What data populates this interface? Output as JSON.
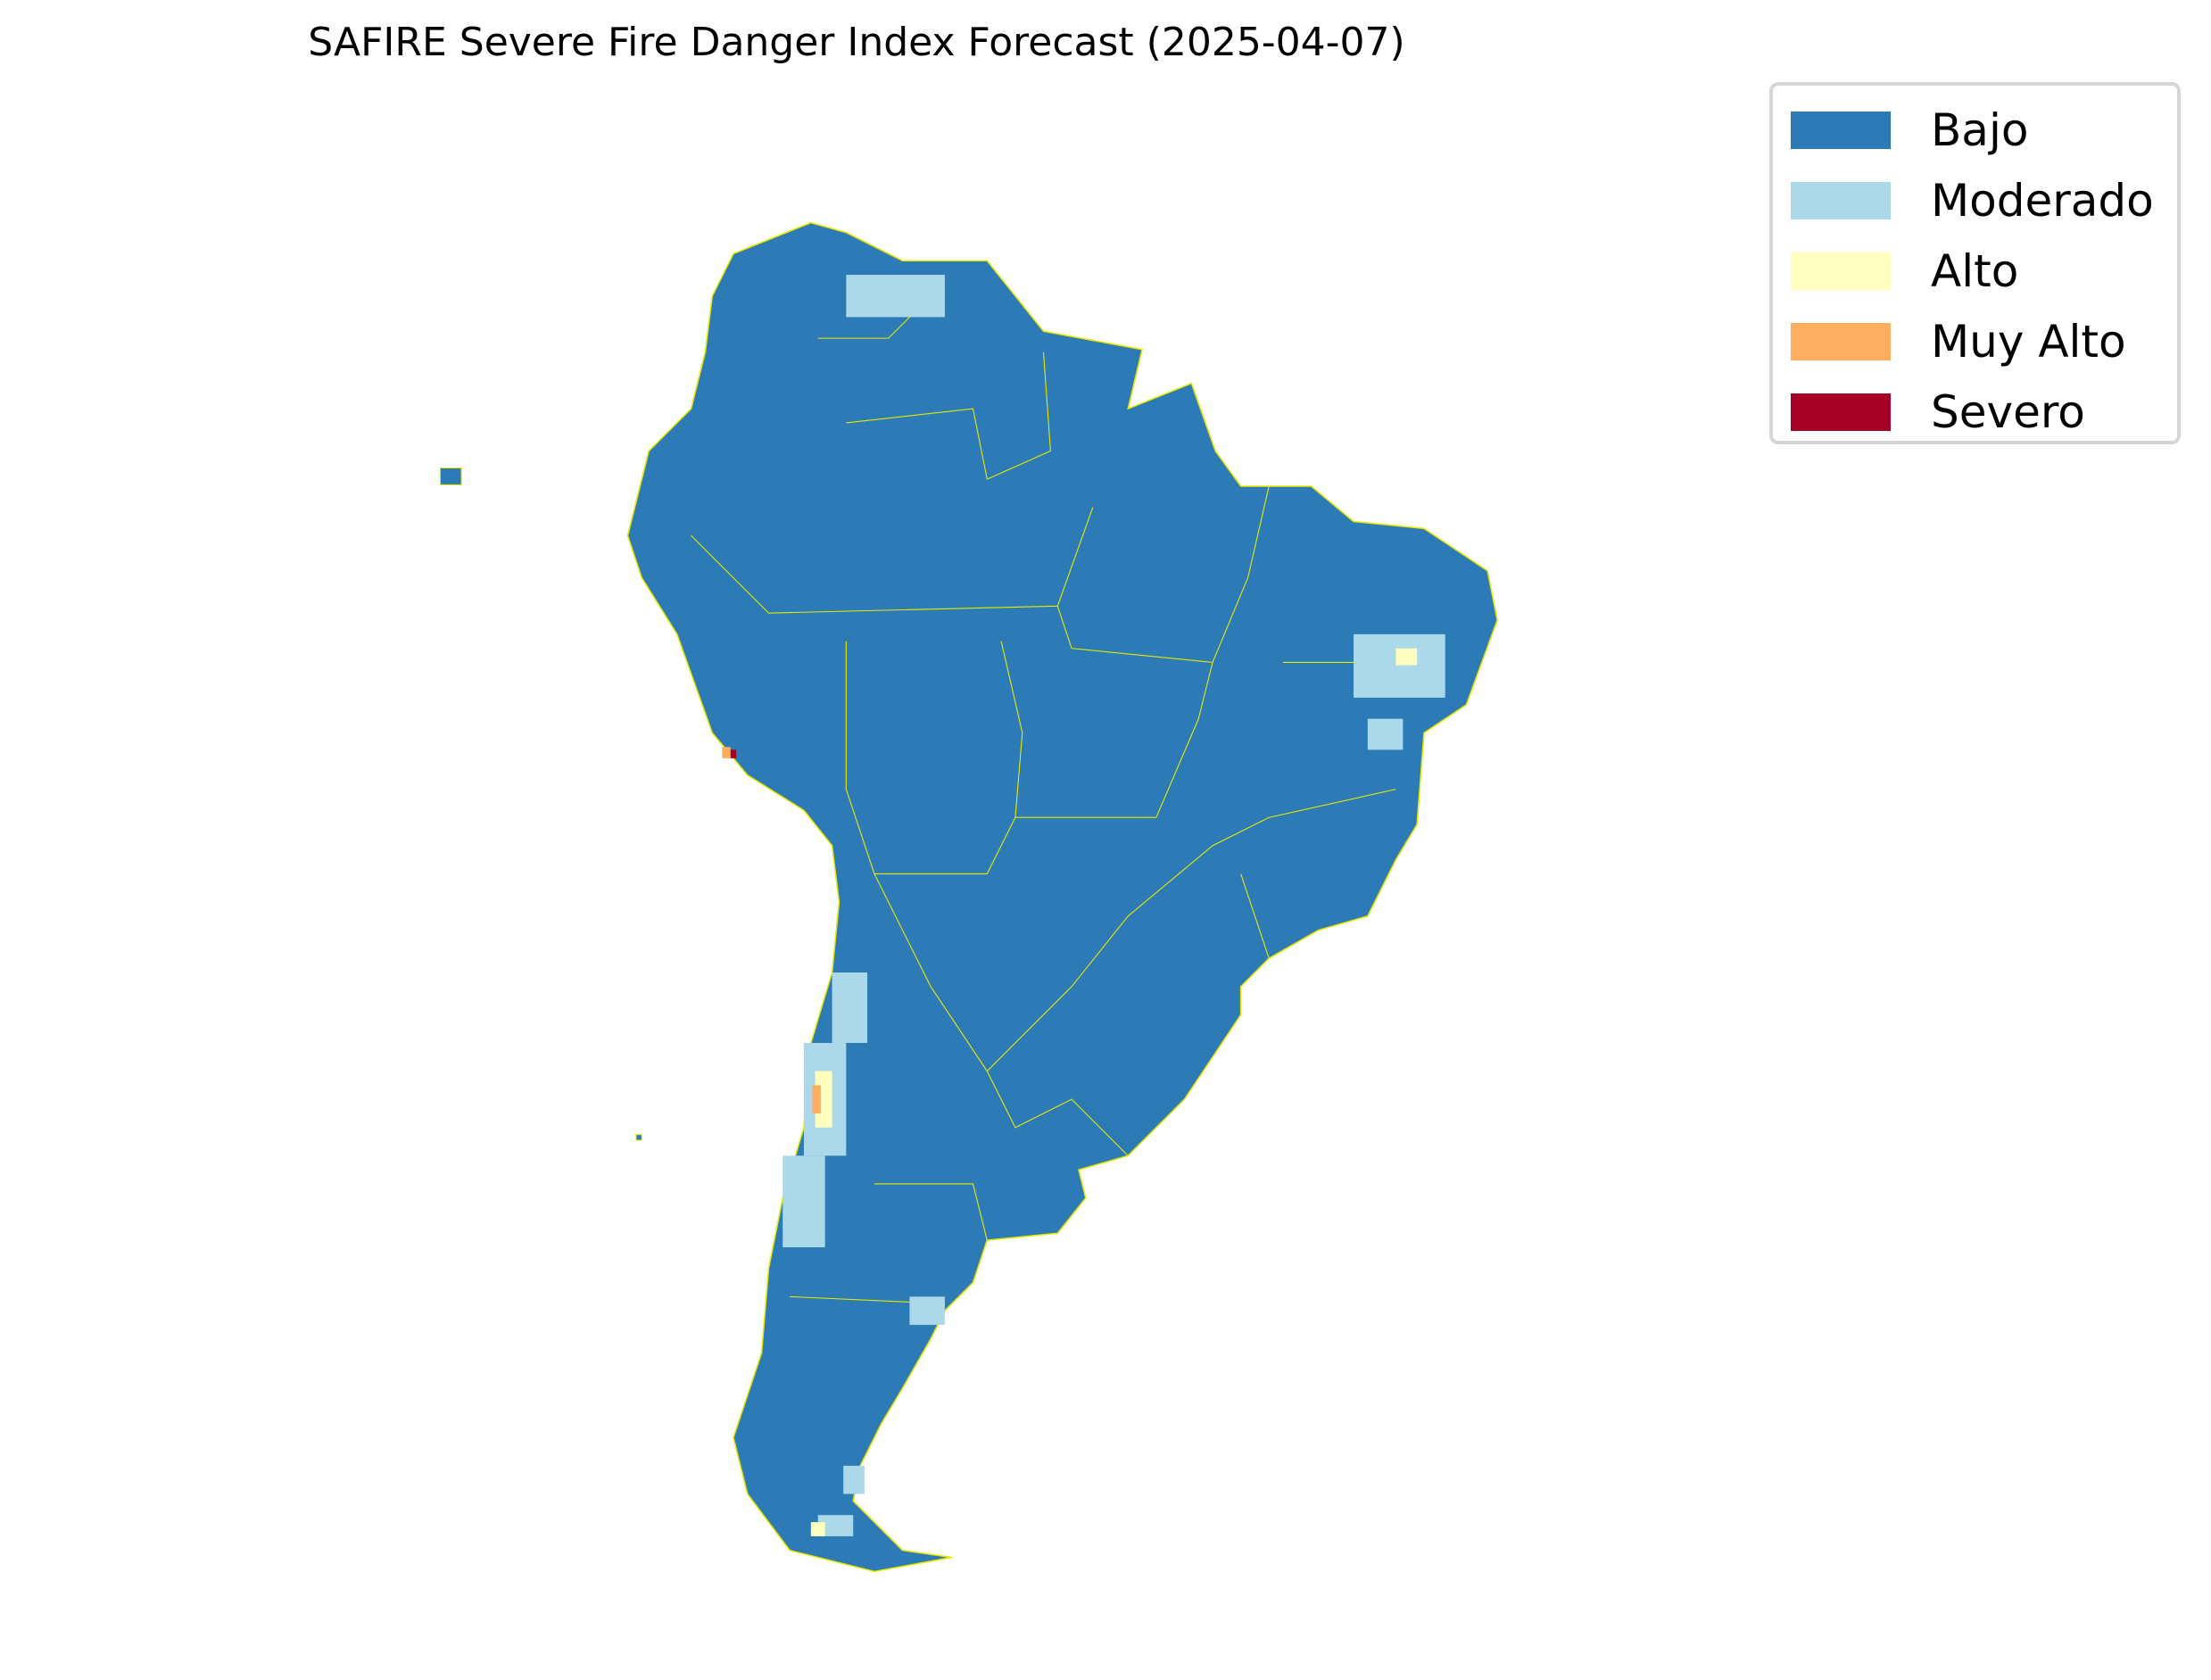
{
  "title": "SAFIRE Severe Fire Danger Index Forecast (2025-04-07)",
  "legend": [
    {
      "label": "Bajo",
      "color": "#2c7bb6"
    },
    {
      "label": "Moderado",
      "color": "#abd9e9"
    },
    {
      "label": "Alto",
      "color": "#ffffbf"
    },
    {
      "label": "Muy Alto",
      "color": "#fdae61"
    },
    {
      "label": "Severo",
      "color": "#a50026"
    }
  ],
  "border_color": "#e8e800",
  "region": "South America"
}
